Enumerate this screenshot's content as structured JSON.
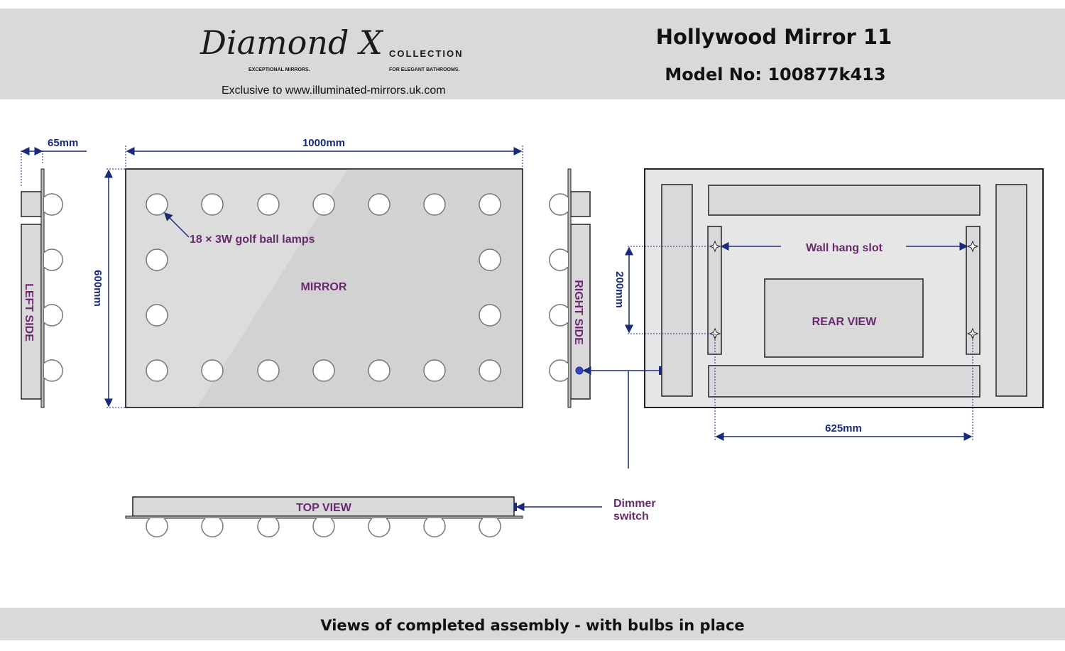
{
  "header": {
    "logo_text": "Diamond X",
    "logo_collection": "COLLECTION",
    "logo_tag_left": "EXCEPTIONAL MIRRORS.",
    "logo_tag_right": "FOR ELEGANT BATHROOMS.",
    "exclusive": "Exclusive to www.illuminated-mirrors.uk.com",
    "title": "Hollywood Mirror 11",
    "model": "Model No: 100877k413"
  },
  "dimensions": {
    "depth": "65mm",
    "width": "1000mm",
    "height": "600mm",
    "slot_vertical": "200mm",
    "slot_horizontal": "625mm"
  },
  "labels": {
    "lamps": "18 × 3W golf ball lamps",
    "mirror": "MIRROR",
    "left_side": "LEFT SIDE",
    "right_side": "RIGHT SIDE",
    "wall_hang_slot": "Wall hang slot",
    "rear_view": "REAR VIEW",
    "top_view": "TOP VIEW",
    "dimmer_line1": "Dimmer",
    "dimmer_line2": "switch"
  },
  "footer": {
    "caption": "Views of completed assembly - with bulbs in place"
  },
  "colors": {
    "label": "#6a2a6e",
    "dimension": "#1b2a7a",
    "panel": "#d9d9d9",
    "band": "#d9d9d9"
  }
}
